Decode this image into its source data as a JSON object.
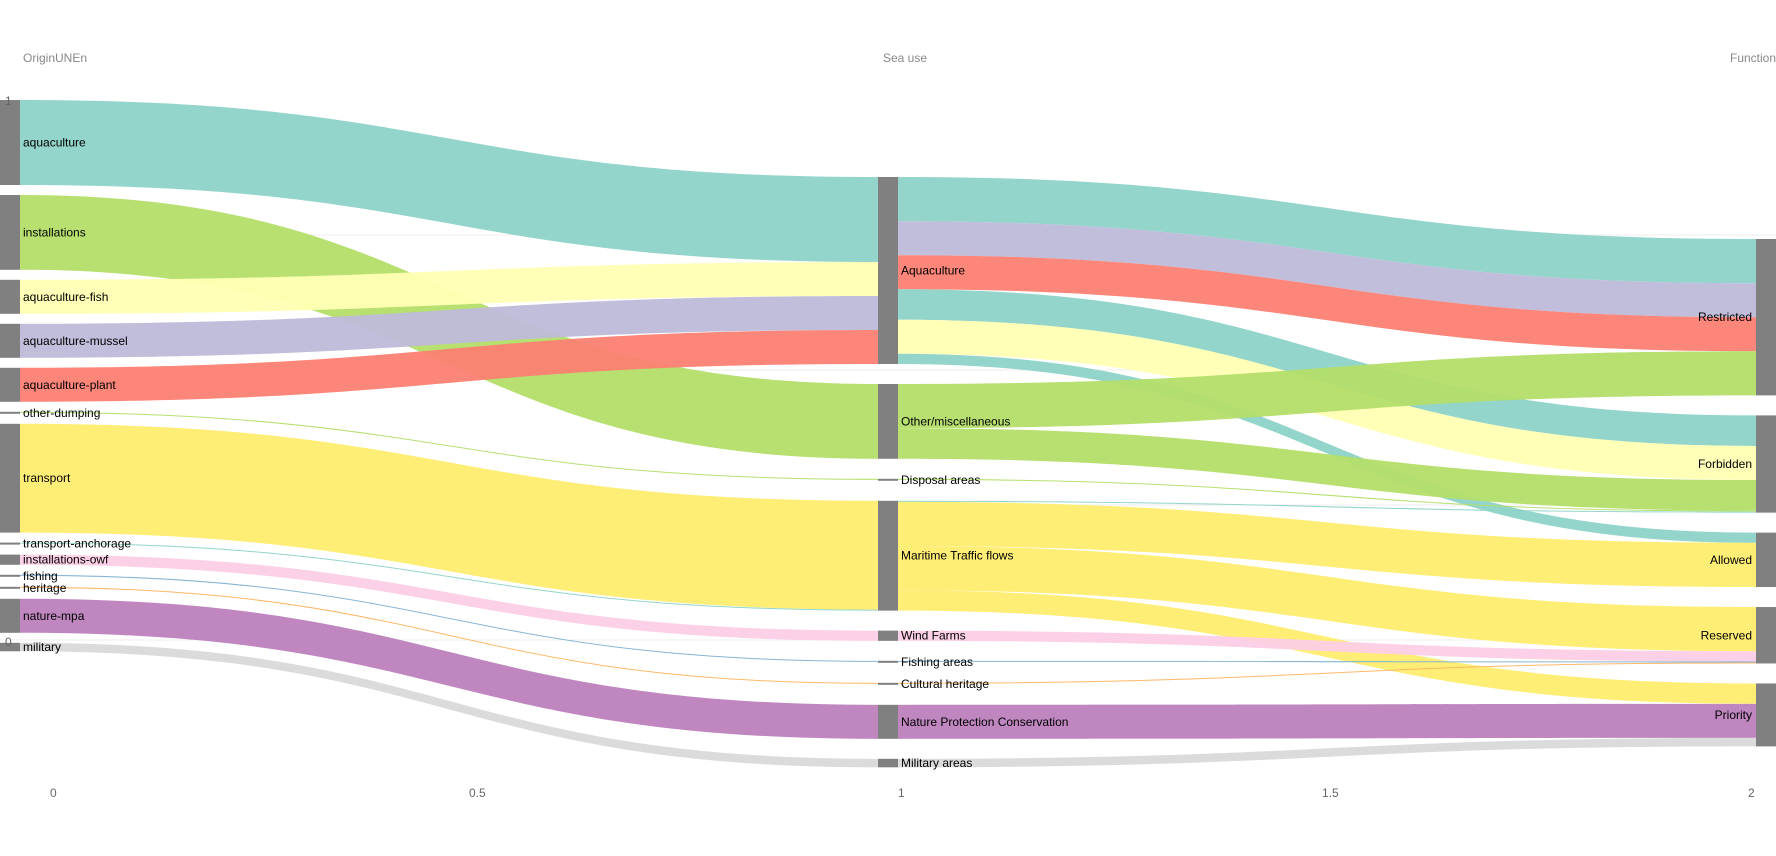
{
  "chart_data": {
    "type": "sankey",
    "columns": [
      {
        "title": "OriginUNEn",
        "x": 0,
        "nodes": [
          "aquaculture",
          "installations",
          "aquaculture-fish",
          "aquaculture-mussel",
          "aquaculture-plant",
          "other-dumping",
          "transport",
          "transport-anchorage",
          "installations-owf",
          "fishing",
          "heritage",
          "nature-mpa",
          "military"
        ]
      },
      {
        "title": "Sea use",
        "x": 1,
        "nodes": [
          "Aquaculture",
          "Other/miscellaneous",
          "Disposal areas",
          "Maritime Traffic flows",
          "Wind Farms",
          "Fishing areas",
          "Cultural heritage",
          "Nature Protection Conservation",
          "Military areas"
        ]
      },
      {
        "title": "Function",
        "x": 2,
        "nodes": [
          "Restricted",
          "Forbidden",
          "Allowed",
          "Reserved",
          "Priority"
        ]
      }
    ],
    "x_ticks": [
      "0",
      "0.5",
      "1",
      "1.5",
      "2"
    ],
    "y_ticks": [
      "1",
      "0"
    ],
    "flows": [
      {
        "source": "aquaculture",
        "target": "Aquaculture",
        "value": 2.5,
        "color": "#8dd3c7"
      },
      {
        "source": "installations",
        "target": "Other/miscellaneous",
        "value": 2.2,
        "color": "#b3de69"
      },
      {
        "source": "aquaculture-fish",
        "target": "Aquaculture",
        "value": 1.0,
        "color": "#ffffb3"
      },
      {
        "source": "aquaculture-mussel",
        "target": "Aquaculture",
        "value": 1.0,
        "color": "#bebada"
      },
      {
        "source": "aquaculture-plant",
        "target": "Aquaculture",
        "value": 1.0,
        "color": "#fb8072"
      },
      {
        "source": "other-dumping",
        "target": "Disposal areas",
        "value": 0.03,
        "color": "#b3de69"
      },
      {
        "source": "transport",
        "target": "Maritime Traffic flows",
        "value": 3.2,
        "color": "#ffed6f"
      },
      {
        "source": "transport-anchorage",
        "target": "Maritime Traffic flows",
        "value": 0.03,
        "color": "#8dd3c7"
      },
      {
        "source": "installations-owf",
        "target": "Wind Farms",
        "value": 0.3,
        "color": "#fccde5"
      },
      {
        "source": "fishing",
        "target": "Fishing areas",
        "value": 0.03,
        "color": "#80b1d3"
      },
      {
        "source": "heritage",
        "target": "Cultural heritage",
        "value": 0.03,
        "color": "#fdb462"
      },
      {
        "source": "nature-mpa",
        "target": "Nature Protection Conservation",
        "value": 1.0,
        "color": "#bc80bd"
      },
      {
        "source": "military",
        "target": "Military areas",
        "value": 0.25,
        "color": "#d9d9d9"
      },
      {
        "source": "Aquaculture",
        "target": "Restricted",
        "value": 1.3,
        "color": "#8dd3c7"
      },
      {
        "source": "Aquaculture",
        "target": "Restricted",
        "value": 1.0,
        "color": "#bebada"
      },
      {
        "source": "Aquaculture",
        "target": "Restricted",
        "value": 1.0,
        "color": "#fb8072"
      },
      {
        "source": "Aquaculture",
        "target": "Forbidden",
        "value": 0.9,
        "color": "#8dd3c7"
      },
      {
        "source": "Aquaculture",
        "target": "Forbidden",
        "value": 1.0,
        "color": "#ffffb3"
      },
      {
        "source": "Aquaculture",
        "target": "Allowed",
        "value": 0.3,
        "color": "#8dd3c7"
      },
      {
        "source": "Other/miscellaneous",
        "target": "Restricted",
        "value": 1.3,
        "color": "#b3de69"
      },
      {
        "source": "Other/miscellaneous",
        "target": "Forbidden",
        "value": 0.9,
        "color": "#b3de69"
      },
      {
        "source": "Disposal areas",
        "target": "Forbidden",
        "value": 0.03,
        "color": "#b3de69"
      },
      {
        "source": "Maritime Traffic flows",
        "target": "Forbidden",
        "value": 0.03,
        "color": "#8dd3c7"
      },
      {
        "source": "Maritime Traffic flows",
        "target": "Allowed",
        "value": 1.3,
        "color": "#ffed6f"
      },
      {
        "source": "Maritime Traffic flows",
        "target": "Reserved",
        "value": 1.3,
        "color": "#ffed6f"
      },
      {
        "source": "Maritime Traffic flows",
        "target": "Priority",
        "value": 0.6,
        "color": "#ffed6f"
      },
      {
        "source": "Wind Farms",
        "target": "Reserved",
        "value": 0.3,
        "color": "#fccde5"
      },
      {
        "source": "Fishing areas",
        "target": "Reserved",
        "value": 0.03,
        "color": "#80b1d3"
      },
      {
        "source": "Cultural heritage",
        "target": "Reserved",
        "value": 0.03,
        "color": "#fdb462"
      },
      {
        "source": "Nature Protection Conservation",
        "target": "Priority",
        "value": 1.0,
        "color": "#bc80bd"
      },
      {
        "source": "Military areas",
        "target": "Priority",
        "value": 0.25,
        "color": "#d9d9d9"
      }
    ],
    "node_color": "#808080",
    "grid": true
  }
}
